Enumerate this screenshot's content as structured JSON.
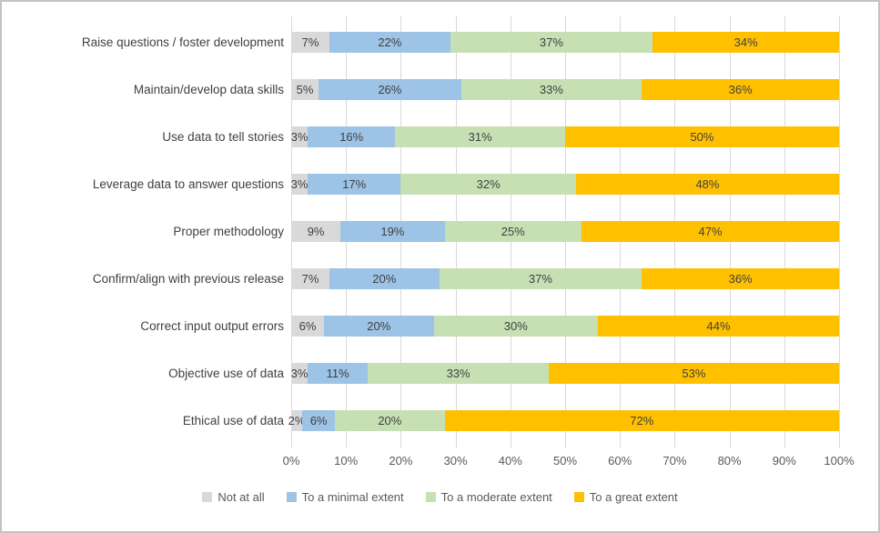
{
  "figure": {
    "background_color": "#ffffff",
    "border_color": "#c3c3c3",
    "gridline_color": "#d9d9d9",
    "label_color": "#404040",
    "axis_label_color": "#595959"
  },
  "chart_data": {
    "type": "bar",
    "orientation": "horizontal",
    "stacked": true,
    "title": "",
    "xlabel": "",
    "ylabel": "",
    "xlim": [
      0,
      100
    ],
    "grid": true,
    "legend_position": "bottom",
    "x_ticks": [
      "0%",
      "10%",
      "20%",
      "30%",
      "40%",
      "50%",
      "60%",
      "70%",
      "80%",
      "90%",
      "100%"
    ],
    "categories": [
      "Raise questions / foster development",
      "Maintain/develop data skills",
      "Use data to tell stories",
      "Leverage data to answer questions",
      "Proper methodology",
      "Confirm/align with previous release",
      "Correct input output errors",
      "Objective use of data",
      "Ethical use of data"
    ],
    "series": [
      {
        "name": "Not at all",
        "color": "#d9d9d9",
        "values": [
          7,
          5,
          3,
          3,
          9,
          7,
          6,
          3,
          2
        ]
      },
      {
        "name": "To a minimal extent",
        "color": "#9dc3e6",
        "values": [
          22,
          26,
          16,
          17,
          19,
          20,
          20,
          11,
          6
        ]
      },
      {
        "name": "To a moderate extent",
        "color": "#c6e0b4",
        "values": [
          37,
          33,
          31,
          32,
          25,
          37,
          30,
          33,
          20
        ]
      },
      {
        "name": "To a great extent",
        "color": "#ffc000",
        "values": [
          34,
          36,
          50,
          48,
          47,
          36,
          44,
          53,
          72
        ]
      }
    ],
    "data_label_suffix": "%"
  }
}
